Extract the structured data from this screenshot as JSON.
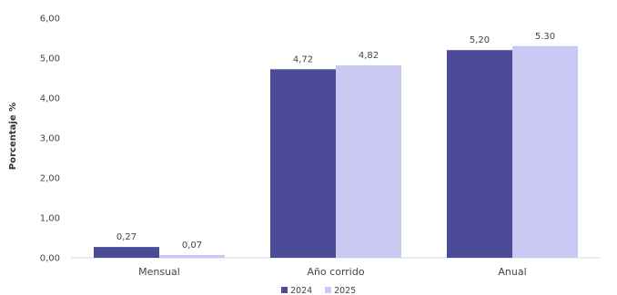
{
  "chart_data": {
    "type": "bar",
    "categories": [
      "Mensual",
      "Año corrido",
      "Anual"
    ],
    "series": [
      {
        "name": "2024",
        "values": [
          0.27,
          4.72,
          5.2
        ],
        "labels": [
          "0,27",
          "4,72",
          "5,20"
        ],
        "color": "#4b4b9a"
      },
      {
        "name": "2025",
        "values": [
          0.07,
          4.82,
          5.3
        ],
        "labels": [
          "0,07",
          "4,82",
          "5.30"
        ],
        "color": "#c9c9f3"
      }
    ],
    "ylabel": "Porcentaje %",
    "ylim": [
      0,
      6
    ],
    "yticks": [
      "0,00",
      "1,00",
      "2,00",
      "3,00",
      "4,00",
      "5,00",
      "6,00"
    ],
    "grid": false,
    "legend_position": "bottom"
  }
}
